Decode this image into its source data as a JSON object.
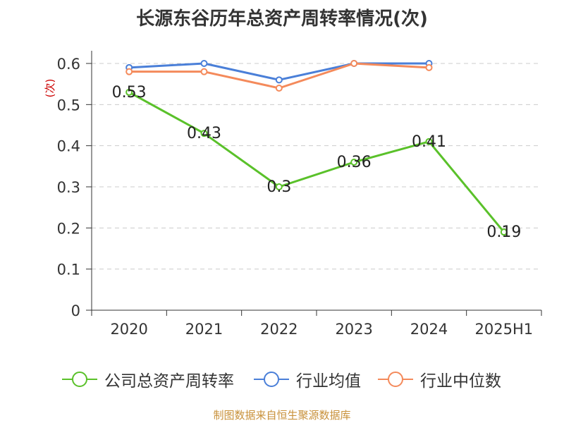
{
  "title": "长源东谷历年总资产周转率情况(次)",
  "source": "制图数据来自恒生聚源数据库",
  "chart_data": {
    "type": "line",
    "title": "长源东谷历年总资产周转率情况(次)",
    "ylabel": "(次)",
    "xlabel": "",
    "categories": [
      "2020",
      "2021",
      "2022",
      "2023",
      "2024",
      "2025H1"
    ],
    "ylim": [
      0,
      0.6
    ],
    "yticks": [
      "0",
      "0.1",
      "0.2",
      "0.3",
      "0.4",
      "0.5",
      "0.6"
    ],
    "grid": true,
    "legend_position": "bottom",
    "series": [
      {
        "name": "公司总资产周转率",
        "color": "#5ac12a",
        "values": [
          0.53,
          0.43,
          0.3,
          0.36,
          0.41,
          0.19
        ],
        "labels": [
          "0.53",
          "0.43",
          "0.3",
          "0.36",
          "0.41",
          "0.19"
        ]
      },
      {
        "name": "行业均值",
        "color": "#4a7fd8",
        "values": [
          0.59,
          0.6,
          0.56,
          0.6,
          0.6,
          null
        ]
      },
      {
        "name": "行业中位数",
        "color": "#f48a5b",
        "values": [
          0.58,
          0.58,
          0.54,
          0.6,
          0.59,
          null
        ]
      }
    ]
  }
}
